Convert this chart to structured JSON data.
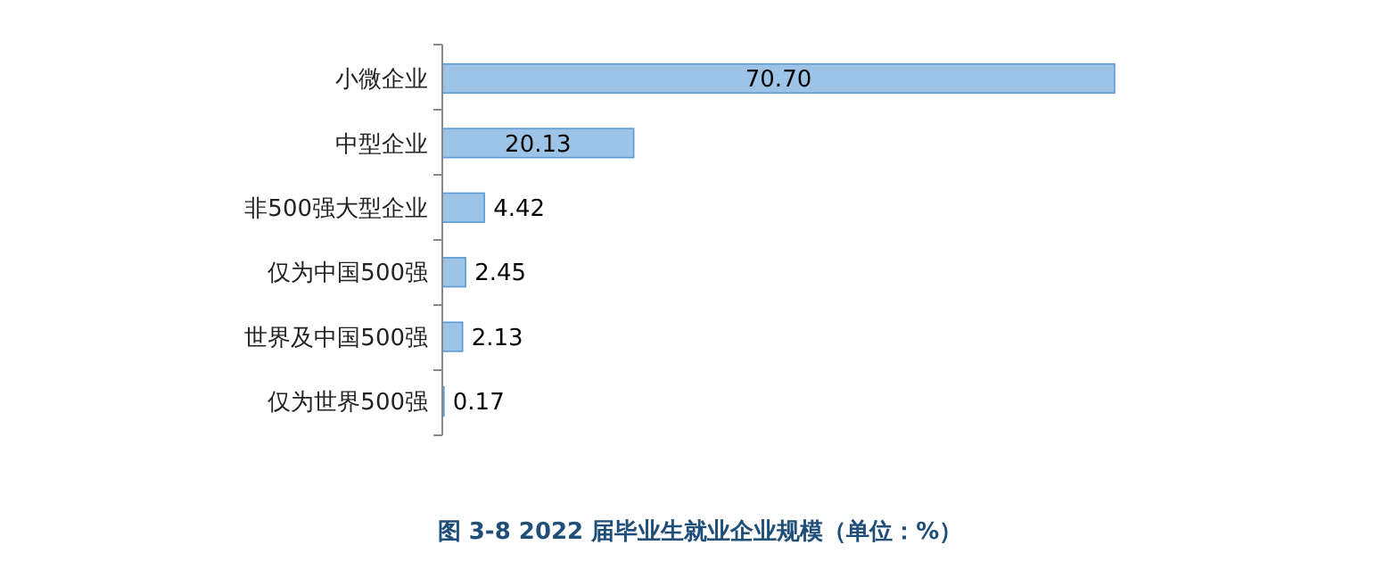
{
  "chart_data": {
    "type": "bar",
    "orientation": "horizontal",
    "title": "图 3-8  2022 届毕业生就业企业规模（单位：%）",
    "categories": [
      "小微企业",
      "中型企业",
      "非500强大型企业",
      "仅为中国500强",
      "世界及中国500强",
      "仅为世界500强"
    ],
    "values": [
      70.7,
      20.13,
      4.42,
      2.45,
      2.13,
      0.17
    ],
    "color": "#9dc3e6",
    "data_labels": true,
    "value_labels": [
      "70.70",
      "20.13",
      "4.42",
      "2.45",
      "2.13",
      "0.17"
    ]
  }
}
